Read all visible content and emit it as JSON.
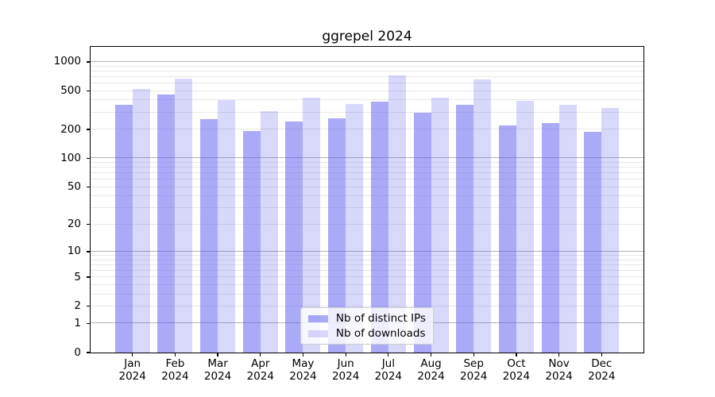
{
  "title": "ggrepel 2024",
  "chart_data": {
    "type": "bar",
    "title": "ggrepel 2024",
    "categories": [
      "Jan",
      "Feb",
      "Mar",
      "Apr",
      "May",
      "Jun",
      "Jul",
      "Aug",
      "Sep",
      "Oct",
      "Nov",
      "Dec"
    ],
    "category_year": "2024",
    "series": [
      {
        "name": "Nb of distinct IPs",
        "color": "rgba(85,85,238,0.50)",
        "values": [
          360,
          460,
          258,
          194,
          240,
          261,
          389,
          300,
          358,
          219,
          234,
          190
        ]
      },
      {
        "name": "Nb of downloads",
        "color": "rgba(85,85,238,0.23)",
        "values": [
          530,
          670,
          405,
          312,
          430,
          368,
          720,
          424,
          660,
          395,
          360,
          333
        ]
      }
    ],
    "yscale": "log1p",
    "yticks": [
      0,
      1,
      2,
      5,
      10,
      20,
      50,
      100,
      200,
      500,
      1000
    ],
    "ylim": [
      0,
      1430
    ],
    "grid": {
      "major_lines": [
        1,
        10,
        100,
        1000
      ],
      "minor_base": [
        2,
        3,
        4,
        5,
        6,
        7,
        8,
        9
      ],
      "minor_decades": [
        1,
        10,
        100
      ]
    },
    "legend_position": "lower center",
    "colors": {
      "bar_base": "#5555ee",
      "grid_major": "#b3b3b3",
      "grid_minor": "#e8e8e8",
      "axis": "#000000",
      "background": "#ffffff"
    }
  }
}
